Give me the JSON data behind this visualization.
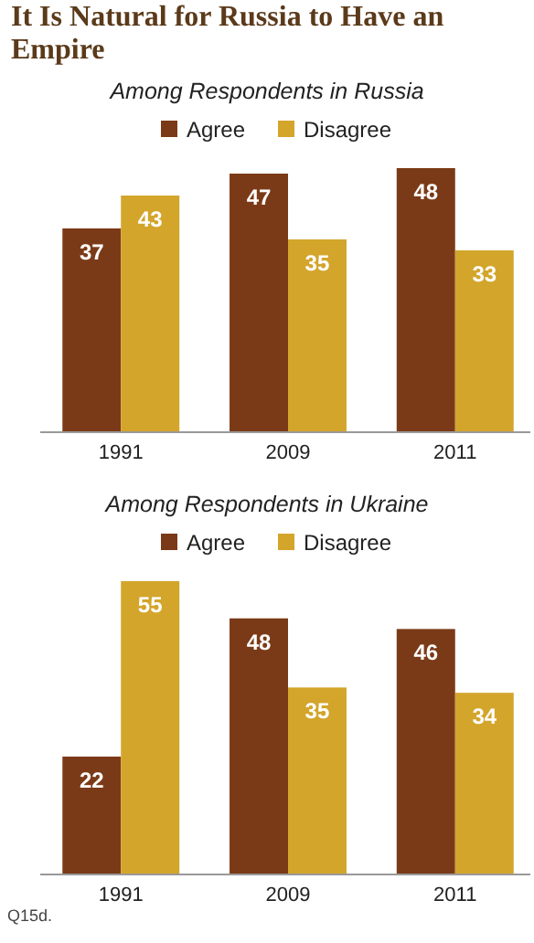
{
  "chart_data": [
    {
      "type": "bar",
      "title": "It Is Natural for Russia to Have an Empire",
      "subtitle": "Among Respondents in Russia",
      "categories": [
        "1991",
        "2009",
        "2011"
      ],
      "series": [
        {
          "name": "Agree",
          "color": "#7b3a17",
          "values": [
            37,
            47,
            48
          ]
        },
        {
          "name": "Disagree",
          "color": "#d3a52b",
          "values": [
            43,
            35,
            33
          ]
        }
      ],
      "data_labels": true,
      "legend": "top",
      "grid": false
    },
    {
      "type": "bar",
      "subtitle": "Among Respondents in Ukraine",
      "categories": [
        "1991",
        "2009",
        "2011"
      ],
      "series": [
        {
          "name": "Agree",
          "color": "#7b3a17",
          "values": [
            22,
            48,
            46
          ]
        },
        {
          "name": "Disagree",
          "color": "#d3a52b",
          "values": [
            55,
            35,
            34
          ]
        }
      ],
      "data_labels": true,
      "legend": "top",
      "grid": false,
      "annotations": [
        "Q15d."
      ]
    }
  ]
}
